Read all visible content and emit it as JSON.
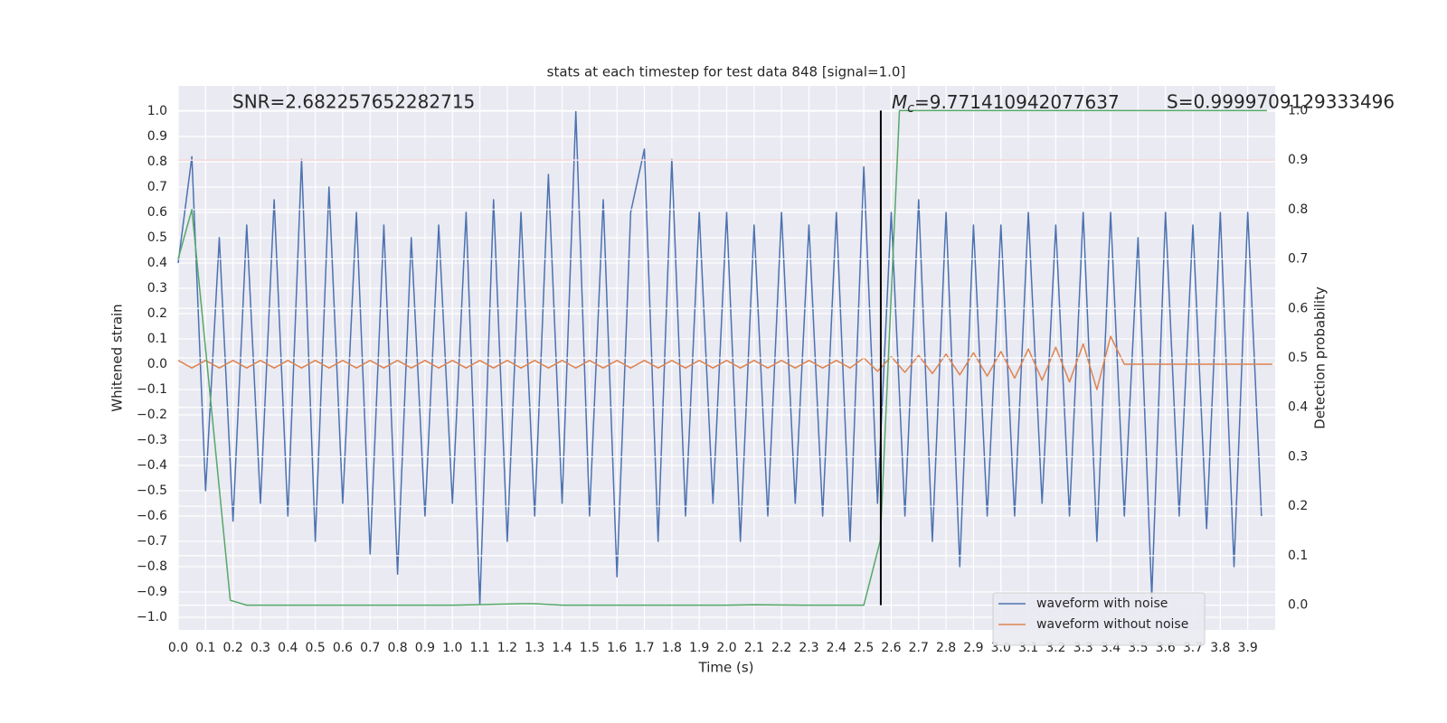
{
  "chart_data": {
    "type": "line",
    "title": "stats at each timestep for test data 848 [signal=1.0]",
    "xlabel": "Time (s)",
    "ylabel": "Whitened strain",
    "y2label": "Detection probability",
    "annotations": {
      "snr": "SNR=2.682257652282715",
      "mc": {
        "symbol": "M",
        "subscript": "c",
        "text": "=9.771410942077637"
      },
      "s": "S=0.9999709129333496"
    },
    "xlim": [
      0,
      4.0
    ],
    "ylim": [
      -1.05,
      1.1
    ],
    "y2lim": [
      -0.05,
      1.05
    ],
    "xticks": [
      {
        "value": 0,
        "label": "0.0"
      },
      0.1,
      0.2,
      0.3,
      0.4,
      0.5,
      0.6,
      0.7,
      0.8,
      0.9,
      {
        "value": 1,
        "label": "1.0"
      },
      1.1,
      1.2,
      1.3,
      1.4,
      1.5,
      1.6,
      1.7,
      1.8,
      1.9,
      {
        "value": 2,
        "label": "2.0"
      },
      2.1,
      2.2,
      2.3,
      2.4,
      2.5,
      2.6,
      2.7,
      2.8,
      2.9,
      {
        "value": 3,
        "label": "3.0"
      },
      3.1,
      3.2,
      3.3,
      3.4,
      3.5,
      3.6,
      3.7,
      3.8,
      3.9
    ],
    "yticks": [
      {
        "value": -1,
        "label": "−1.0"
      },
      {
        "value": -0.9,
        "label": "−0.9"
      },
      {
        "value": -0.8,
        "label": "−0.8"
      },
      {
        "value": -0.7,
        "label": "−0.7"
      },
      {
        "value": -0.6,
        "label": "−0.6"
      },
      {
        "value": -0.5,
        "label": "−0.5"
      },
      {
        "value": -0.4,
        "label": "−0.4"
      },
      {
        "value": -0.3,
        "label": "−0.3"
      },
      {
        "value": -0.2,
        "label": "−0.2"
      },
      {
        "value": -0.1,
        "label": "−0.1"
      },
      {
        "value": 0,
        "label": "0.0"
      },
      0.1,
      0.2,
      0.3,
      0.4,
      0.5,
      0.6,
      0.7,
      0.8,
      0.9,
      {
        "value": 1,
        "label": "1.0"
      }
    ],
    "y2ticks": [
      {
        "value": 0,
        "label": "0.0"
      },
      0.1,
      0.2,
      0.3,
      0.4,
      0.5,
      0.6,
      0.7,
      0.8,
      0.9,
      {
        "value": 1,
        "label": "1.0"
      }
    ],
    "grid": true,
    "legend": "lower right",
    "series": [
      {
        "name": "waveform with noise",
        "color": "#4c72b0",
        "x": [
          0,
          0.05,
          0.1,
          0.15,
          0.2,
          0.25,
          0.3,
          0.35,
          0.4,
          0.45,
          0.5,
          0.55,
          0.6,
          0.65,
          0.7,
          0.75,
          0.8,
          0.85,
          0.9,
          0.95,
          1,
          1.05,
          1.1,
          1.15,
          1.2,
          1.25,
          1.3,
          1.35,
          1.4,
          1.45,
          1.5,
          1.55,
          1.6,
          1.65,
          1.7,
          1.75,
          1.8,
          1.85,
          1.9,
          1.95,
          2,
          2.05,
          2.1,
          2.15,
          2.2,
          2.25,
          2.3,
          2.35,
          2.4,
          2.45,
          2.5,
          2.55,
          2.6,
          2.65,
          2.7,
          2.75,
          2.8,
          2.85,
          2.9,
          2.95,
          3,
          3.05,
          3.1,
          3.15,
          3.2,
          3.25,
          3.3,
          3.35,
          3.4,
          3.45,
          3.5,
          3.55,
          3.6,
          3.65,
          3.7,
          3.75,
          3.8,
          3.85,
          3.9,
          3.95
        ],
        "values": [
          0.4,
          0.82,
          -0.5,
          0.5,
          -0.62,
          0.55,
          -0.55,
          0.65,
          -0.6,
          0.81,
          -0.7,
          0.7,
          -0.55,
          0.6,
          -0.75,
          0.55,
          -0.83,
          0.5,
          -0.6,
          0.55,
          -0.55,
          0.6,
          -0.95,
          0.65,
          -0.7,
          0.6,
          -0.6,
          0.75,
          -0.55,
          1.0,
          -0.6,
          0.65,
          -0.84,
          0.6,
          0.85,
          -0.7,
          0.81,
          -0.6,
          0.6,
          -0.55,
          0.6,
          -0.7,
          0.55,
          -0.6,
          0.6,
          -0.55,
          0.55,
          -0.6,
          0.6,
          -0.7,
          0.78,
          -0.55,
          0.6,
          -0.6,
          0.65,
          -0.7,
          0.6,
          -0.8,
          0.55,
          -0.6,
          0.55,
          -0.6,
          0.6,
          -0.55,
          0.55,
          -0.6,
          0.6,
          -0.7,
          0.6,
          -0.6,
          0.5,
          -0.92,
          0.6,
          -0.6,
          0.55,
          -0.65,
          0.6,
          -0.8,
          0.6,
          -0.6
        ]
      },
      {
        "name": "waveform without noise",
        "color": "#dd8452",
        "x": [
          0,
          0.05,
          0.1,
          0.15,
          0.2,
          0.25,
          0.3,
          0.35,
          0.4,
          0.45,
          0.5,
          0.55,
          0.6,
          0.65,
          0.7,
          0.75,
          0.8,
          0.85,
          0.9,
          0.95,
          1,
          1.05,
          1.1,
          1.15,
          1.2,
          1.25,
          1.3,
          1.35,
          1.4,
          1.45,
          1.5,
          1.55,
          1.6,
          1.65,
          1.7,
          1.75,
          1.8,
          1.85,
          1.9,
          1.95,
          2,
          2.05,
          2.1,
          2.15,
          2.2,
          2.25,
          2.3,
          2.35,
          2.4,
          2.45,
          2.5,
          2.55,
          2.6,
          2.65,
          2.7,
          2.75,
          2.8,
          2.85,
          2.9,
          2.95,
          3,
          3.05,
          3.1,
          3.15,
          3.2,
          3.25,
          3.3,
          3.35,
          3.4,
          3.45,
          3.99
        ],
        "values": [
          0.015,
          -0.015,
          0.015,
          -0.015,
          0.015,
          -0.015,
          0.015,
          -0.015,
          0.015,
          -0.015,
          0.015,
          -0.015,
          0.015,
          -0.015,
          0.015,
          -0.015,
          0.015,
          -0.015,
          0.015,
          -0.015,
          0.015,
          -0.015,
          0.015,
          -0.015,
          0.015,
          -0.015,
          0.015,
          -0.015,
          0.015,
          -0.015,
          0.015,
          -0.015,
          0.015,
          -0.015,
          0.015,
          -0.015,
          0.015,
          -0.015,
          0.015,
          -0.015,
          0.015,
          -0.015,
          0.015,
          -0.015,
          0.015,
          -0.015,
          0.015,
          -0.015,
          0.015,
          -0.015,
          0.025,
          -0.028,
          0.03,
          -0.032,
          0.035,
          -0.037,
          0.04,
          -0.042,
          0.045,
          -0.047,
          0.05,
          -0.055,
          0.06,
          -0.063,
          0.067,
          -0.07,
          0.08,
          -0.1,
          0.11,
          0,
          0
        ]
      },
      {
        "color": "#55a868",
        "axis": "y2",
        "x": [
          0,
          0.05,
          0.19,
          0.25,
          0.5,
          1.0,
          1.25,
          1.3,
          1.4,
          2.0,
          2.1,
          2.3,
          2.5,
          2.56,
          2.63,
          3.0,
          3.97
        ],
        "values": [
          0.7,
          0.8,
          0.01,
          0,
          0,
          0,
          0.003,
          0.003,
          0,
          0,
          0.001,
          0,
          0,
          0.13,
          1.0,
          1.0,
          1.0
        ]
      }
    ],
    "threshold": {
      "value": 0.9,
      "axis": "y2",
      "color": "#c44e52"
    },
    "vline": {
      "x": 2.562,
      "y2range": [
        0,
        1
      ],
      "color": "#000000"
    }
  }
}
